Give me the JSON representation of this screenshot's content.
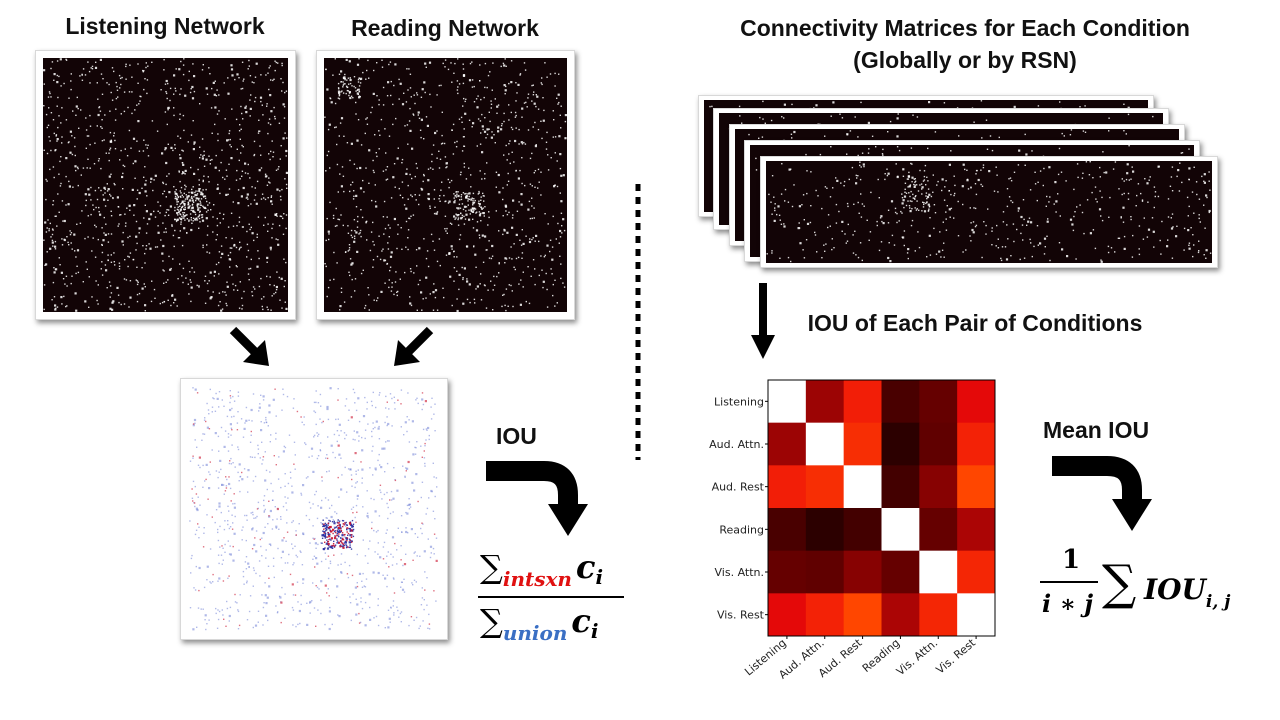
{
  "titles": {
    "listening_network": "Listening Network",
    "reading_network": "Reading Network",
    "connectivity_line1": "Connectivity Matrices for Each Condition",
    "connectivity_line2": "(Globally or by RSN)",
    "iou_pairs": "IOU of Each Pair of Conditions",
    "iou": "IOU",
    "mean_iou": "Mean IOU"
  },
  "formula_iou": {
    "sum_symbol": "∑",
    "num_subscript": "intsxn",
    "den_subscript": "union",
    "variable": "c",
    "var_subscript": "i"
  },
  "formula_mean": {
    "numerator": "1",
    "denominator": "i ∗ j",
    "sum_symbol": "∑",
    "term": "IOU",
    "term_subscript": "i, j"
  },
  "chart_data": {
    "type": "heatmap",
    "categories": [
      "Listening",
      "Aud. Attn.",
      "Aud. Rest",
      "Reading",
      "Vis. Attn.",
      "Vis. Rest"
    ],
    "colormap": "white-red-black",
    "diagonal": "white",
    "values": [
      [
        null,
        0.48,
        0.8,
        0.22,
        0.32,
        0.68
      ],
      [
        0.48,
        null,
        0.88,
        0.12,
        0.3,
        0.82
      ],
      [
        0.8,
        0.88,
        null,
        0.2,
        0.42,
        1.0
      ],
      [
        0.22,
        0.12,
        0.2,
        null,
        0.32,
        0.52
      ],
      [
        0.32,
        0.3,
        0.42,
        0.32,
        null,
        0.84
      ],
      [
        0.68,
        0.82,
        1.0,
        0.52,
        0.84,
        null
      ]
    ]
  },
  "colors": {
    "matrix_background": "#120406",
    "intersection_red": "#e01010",
    "union_blue": "#3a6fc4",
    "arrow": "#000000"
  }
}
